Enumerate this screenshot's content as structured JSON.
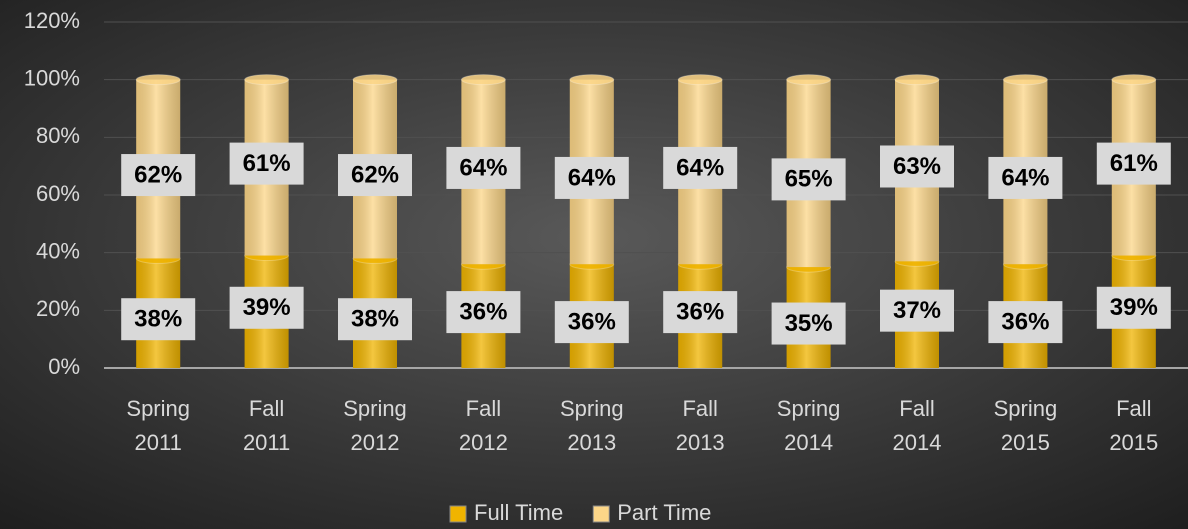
{
  "chart_data": {
    "type": "stacked_bar",
    "categories": [
      "Spring 2011",
      "Fall 2011",
      "Spring 2012",
      "Fall 2012",
      "Spring 2013",
      "Fall 2013",
      "Spring 2014",
      "Fall 2014",
      "Spring 2015",
      "Fall 2015"
    ],
    "series": [
      {
        "name": "Full Time",
        "color": "#f0b400",
        "values": [
          38,
          39,
          38,
          36,
          36,
          36,
          35,
          37,
          36,
          39
        ],
        "value_labels": [
          "38%",
          "39%",
          "38%",
          "36%",
          "36%",
          "36%",
          "35%",
          "37%",
          "36%",
          "39%"
        ]
      },
      {
        "name": "Part Time",
        "color": "#fcd688",
        "values": [
          62,
          61,
          62,
          64,
          64,
          64,
          65,
          63,
          64,
          61
        ],
        "value_labels": [
          "62%",
          "61%",
          "62%",
          "64%",
          "64%",
          "64%",
          "65%",
          "63%",
          "64%",
          "61%"
        ]
      }
    ],
    "ylim": [
      0,
      120
    ],
    "yticks": [
      {
        "value": 0,
        "label": "0%"
      },
      {
        "value": 20,
        "label": "20%"
      },
      {
        "value": 40,
        "label": "40%"
      },
      {
        "value": 60,
        "label": "60%"
      },
      {
        "value": 80,
        "label": "80%"
      },
      {
        "value": 100,
        "label": "100%"
      },
      {
        "value": 120,
        "label": "120%"
      }
    ],
    "grid": true,
    "legend": "bottom"
  }
}
